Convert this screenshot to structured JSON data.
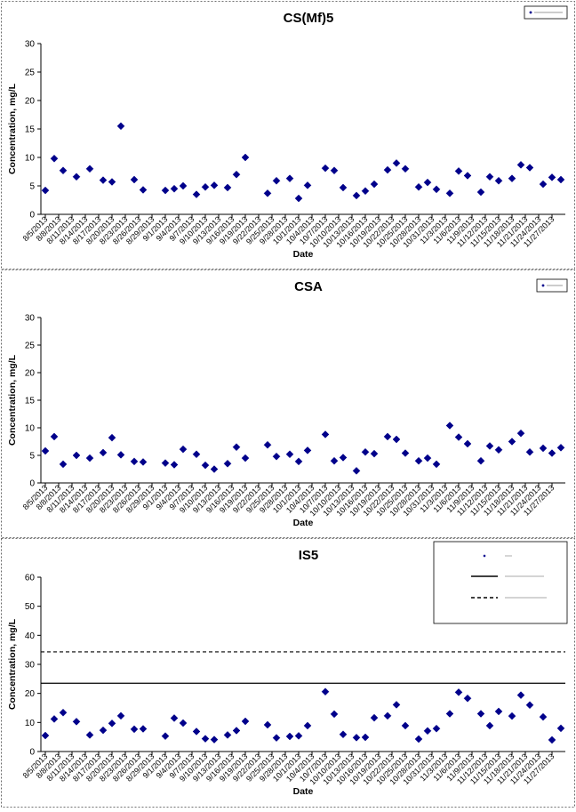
{
  "chart_data": [
    {
      "type": "scatter",
      "title": "CS(Mf)5",
      "xlabel": "Date",
      "ylabel": "Concentration, mg/L",
      "ylim": [
        0,
        30
      ],
      "yticks": [
        "0",
        "5",
        "10",
        "15",
        "20",
        "25",
        "30"
      ],
      "grid": false,
      "legend_position": "top-right",
      "legend_text": "",
      "color": "#00008b",
      "xticks": [
        "8/5/2013",
        "8/8/2013",
        "8/11/2013",
        "8/14/2013",
        "8/17/2013",
        "8/20/2013",
        "8/23/2013",
        "8/26/2013",
        "8/29/2013",
        "9/1/2013",
        "9/4/2013",
        "9/7/2013",
        "9/10/2013",
        "9/13/2013",
        "9/16/2013",
        "9/19/2013",
        "9/22/2013",
        "9/25/2013",
        "9/28/2013",
        "10/1/2013",
        "10/4/2013",
        "10/7/2013",
        "10/10/2013",
        "10/13/2013",
        "10/16/2013",
        "10/19/2013",
        "10/22/2013",
        "10/25/2013",
        "10/28/2013",
        "10/31/2013",
        "11/3/2013",
        "11/6/2013",
        "11/9/2013",
        "11/12/2013",
        "11/15/2013",
        "11/18/2013",
        "11/21/2013",
        "11/24/2013",
        "11/27/2013"
      ],
      "series": [
        {
          "name": "",
          "x": [
            "2013-08-05",
            "2013-08-07",
            "2013-08-09",
            "2013-08-12",
            "2013-08-15",
            "2013-08-18",
            "2013-08-20",
            "2013-08-22",
            "2013-08-25",
            "2013-08-27",
            "2013-09-01",
            "2013-09-03",
            "2013-09-05",
            "2013-09-08",
            "2013-09-10",
            "2013-09-12",
            "2013-09-15",
            "2013-09-17",
            "2013-09-19",
            "2013-09-24",
            "2013-09-26",
            "2013-09-29",
            "2013-10-01",
            "2013-10-03",
            "2013-10-07",
            "2013-10-09",
            "2013-10-11",
            "2013-10-14",
            "2013-10-16",
            "2013-10-18",
            "2013-10-21",
            "2013-10-23",
            "2013-10-25",
            "2013-10-28",
            "2013-10-30",
            "2013-11-01",
            "2013-11-04",
            "2013-11-06",
            "2013-11-08",
            "2013-11-11",
            "2013-11-13",
            "2013-11-15",
            "2013-11-18",
            "2013-11-20",
            "2013-11-22",
            "2013-11-25",
            "2013-11-27",
            "2013-11-29"
          ],
          "y": [
            4.2,
            9.8,
            7.7,
            6.6,
            8.0,
            6.0,
            5.7,
            15.5,
            6.1,
            4.3,
            4.2,
            4.5,
            5.0,
            3.5,
            4.8,
            5.1,
            4.7,
            7.0,
            10.0,
            3.7,
            5.9,
            6.3,
            2.8,
            5.1,
            8.1,
            7.7,
            4.7,
            3.3,
            4.1,
            5.3,
            7.8,
            9.0,
            8.0,
            4.8,
            5.6,
            4.4,
            3.7,
            7.6,
            6.8,
            3.9,
            6.6,
            5.9,
            6.3,
            8.7,
            8.2,
            5.3,
            6.5,
            6.1
          ]
        }
      ]
    },
    {
      "type": "scatter",
      "title": "CSA",
      "xlabel": "Date",
      "ylabel": "Concentration, mg/L",
      "ylim": [
        0,
        30
      ],
      "yticks": [
        "0",
        "5",
        "10",
        "15",
        "20",
        "25",
        "30"
      ],
      "grid": false,
      "legend_position": "top-right",
      "legend_text": "",
      "color": "#00008b",
      "xticks": [
        "8/5/2013",
        "8/8/2013",
        "8/11/2013",
        "8/14/2013",
        "8/17/2013",
        "8/20/2013",
        "8/23/2013",
        "8/26/2013",
        "8/29/2013",
        "9/1/2013",
        "9/4/2013",
        "9/7/2013",
        "9/10/2013",
        "9/13/2013",
        "9/16/2013",
        "9/19/2013",
        "9/22/2013",
        "9/25/2013",
        "9/28/2013",
        "10/1/2013",
        "10/4/2013",
        "10/7/2013",
        "10/10/2013",
        "10/13/2013",
        "10/16/2013",
        "10/19/2013",
        "10/22/2013",
        "10/25/2013",
        "10/28/2013",
        "10/31/2013",
        "11/3/2013",
        "11/6/2013",
        "11/9/2013",
        "11/12/2013",
        "11/15/2013",
        "11/18/2013",
        "11/21/2013",
        "11/24/2013",
        "11/27/2013"
      ],
      "series": [
        {
          "name": "",
          "x": [
            "2013-08-05",
            "2013-08-07",
            "2013-08-09",
            "2013-08-12",
            "2013-08-15",
            "2013-08-18",
            "2013-08-20",
            "2013-08-22",
            "2013-08-25",
            "2013-08-27",
            "2013-09-01",
            "2013-09-03",
            "2013-09-05",
            "2013-09-08",
            "2013-09-10",
            "2013-09-12",
            "2013-09-15",
            "2013-09-17",
            "2013-09-19",
            "2013-09-24",
            "2013-09-26",
            "2013-09-29",
            "2013-10-01",
            "2013-10-03",
            "2013-10-07",
            "2013-10-09",
            "2013-10-11",
            "2013-10-14",
            "2013-10-16",
            "2013-10-18",
            "2013-10-21",
            "2013-10-23",
            "2013-10-25",
            "2013-10-28",
            "2013-10-30",
            "2013-11-01",
            "2013-11-04",
            "2013-11-06",
            "2013-11-08",
            "2013-11-11",
            "2013-11-13",
            "2013-11-15",
            "2013-11-18",
            "2013-11-20",
            "2013-11-22",
            "2013-11-25",
            "2013-11-27",
            "2013-11-29"
          ],
          "y": [
            5.8,
            8.4,
            3.4,
            5.0,
            4.5,
            5.5,
            8.2,
            5.1,
            3.9,
            3.8,
            3.6,
            3.3,
            6.1,
            5.2,
            3.2,
            2.5,
            3.5,
            6.5,
            4.5,
            6.9,
            4.8,
            5.2,
            3.9,
            5.9,
            8.8,
            4.0,
            4.6,
            2.2,
            5.6,
            5.3,
            8.4,
            7.9,
            5.4,
            4.0,
            4.5,
            3.4,
            10.4,
            8.3,
            7.1,
            4.0,
            6.7,
            6.0,
            7.5,
            9.0,
            5.6,
            6.3,
            5.4,
            6.4
          ]
        }
      ]
    },
    {
      "type": "scatter",
      "title": "IS5",
      "xlabel": "Date",
      "ylabel": "Concentration, mg/L",
      "ylim": [
        0,
        60
      ],
      "yticks": [
        "0",
        "10",
        "20",
        "30",
        "40",
        "50",
        "60"
      ],
      "grid": false,
      "legend_position": "top-right",
      "legend_text": "",
      "color": "#00008b",
      "reference_lines": [
        {
          "style": "solid",
          "y": 23.5,
          "label": ""
        },
        {
          "style": "dashed",
          "y": 34.3,
          "label": ""
        }
      ],
      "xticks": [
        "8/5/2013",
        "8/8/2013",
        "8/11/2013",
        "8/14/2013",
        "8/17/2013",
        "8/20/2013",
        "8/23/2013",
        "8/26/2013",
        "8/29/2013",
        "9/1/2013",
        "9/4/2013",
        "9/7/2013",
        "9/10/2013",
        "9/13/2013",
        "9/16/2013",
        "9/19/2013",
        "9/22/2013",
        "9/25/2013",
        "9/28/2013",
        "10/1/2013",
        "10/4/2013",
        "10/7/2013",
        "10/10/2013",
        "10/13/2013",
        "10/16/2013",
        "10/19/2013",
        "10/22/2013",
        "10/25/2013",
        "10/28/2013",
        "10/31/2013",
        "11/3/2013",
        "11/6/2013",
        "11/9/2013",
        "11/12/2013",
        "11/15/2013",
        "11/18/2013",
        "11/21/2013",
        "11/24/2013",
        "11/27/2013"
      ],
      "series": [
        {
          "name": "",
          "x": [
            "2013-08-05",
            "2013-08-07",
            "2013-08-09",
            "2013-08-12",
            "2013-08-15",
            "2013-08-18",
            "2013-08-20",
            "2013-08-22",
            "2013-08-25",
            "2013-08-27",
            "2013-09-01",
            "2013-09-03",
            "2013-09-05",
            "2013-09-08",
            "2013-09-10",
            "2013-09-12",
            "2013-09-15",
            "2013-09-17",
            "2013-09-19",
            "2013-09-24",
            "2013-09-26",
            "2013-09-29",
            "2013-10-01",
            "2013-10-03",
            "2013-10-07",
            "2013-10-09",
            "2013-10-11",
            "2013-10-14",
            "2013-10-16",
            "2013-10-18",
            "2013-10-21",
            "2013-10-23",
            "2013-10-25",
            "2013-10-28",
            "2013-10-30",
            "2013-11-01",
            "2013-11-04",
            "2013-11-06",
            "2013-11-08",
            "2013-11-11",
            "2013-11-13",
            "2013-11-15",
            "2013-11-18",
            "2013-11-20",
            "2013-11-22",
            "2013-11-25",
            "2013-11-27",
            "2013-11-29"
          ],
          "y": [
            5.5,
            11.2,
            13.4,
            10.3,
            5.7,
            7.3,
            9.7,
            12.3,
            7.7,
            7.8,
            5.3,
            11.5,
            9.8,
            6.9,
            4.4,
            4.1,
            5.7,
            7.2,
            10.4,
            9.2,
            4.7,
            5.2,
            5.4,
            8.9,
            20.6,
            12.9,
            5.9,
            4.8,
            4.9,
            11.6,
            12.3,
            16.1,
            8.9,
            4.3,
            7.1,
            7.9,
            13.0,
            20.4,
            18.3,
            13.0,
            8.9,
            13.8,
            12.2,
            19.4,
            16.0,
            11.9,
            4.0,
            8.0
          ]
        }
      ]
    }
  ]
}
